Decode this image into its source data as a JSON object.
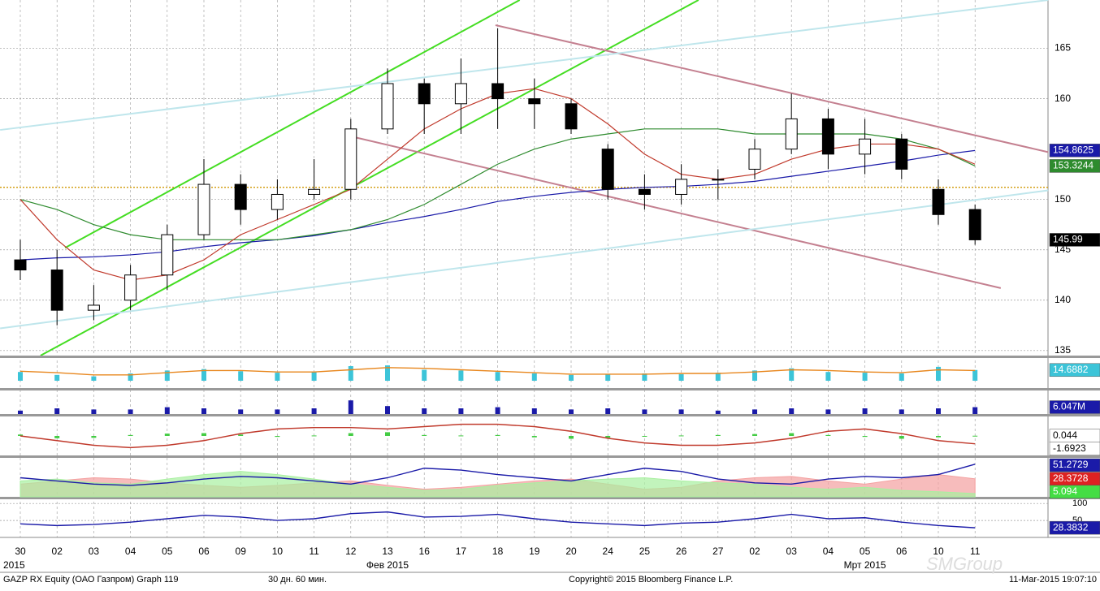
{
  "chart_data": {
    "type": "candlestick",
    "categories": [
      "30",
      "02",
      "03",
      "04",
      "05",
      "06",
      "09",
      "10",
      "11",
      "12",
      "13",
      "16",
      "17",
      "18",
      "19",
      "20",
      "24",
      "25",
      "26",
      "27",
      "02",
      "03",
      "04",
      "05",
      "06",
      "10",
      "11"
    ],
    "period_labels": [
      "2015",
      "Фев 2015",
      "Мрт 2015"
    ],
    "open": [
      144,
      143,
      139,
      140,
      142.5,
      146.5,
      151.5,
      149,
      150.5,
      151,
      157,
      161.5,
      159.5,
      161.5,
      160,
      159.5,
      155,
      151,
      150.5,
      152,
      153,
      155,
      158,
      154.5,
      156,
      151,
      149
    ],
    "high": [
      146,
      145,
      141.5,
      143.5,
      147.5,
      154,
      152.5,
      152,
      154,
      158,
      163,
      162,
      164,
      167,
      162,
      160,
      155.5,
      152.5,
      153.5,
      153,
      156,
      160.5,
      159,
      158,
      156.5,
      152,
      149.5
    ],
    "low": [
      142,
      137.5,
      138,
      139,
      141,
      146,
      147.5,
      148,
      150,
      150,
      156.5,
      156.5,
      156.5,
      157,
      157,
      156.5,
      150,
      149,
      149.5,
      150,
      152,
      154.5,
      153,
      152.5,
      152,
      147.5,
      145.5
    ],
    "close": [
      143,
      139,
      139.5,
      142.5,
      146.5,
      151.5,
      149,
      150.5,
      151,
      157,
      161.5,
      159.5,
      161.5,
      160,
      159.5,
      157,
      151,
      150.5,
      152,
      152,
      155,
      158,
      154.5,
      156,
      153,
      148.5,
      145.99
    ],
    "up_color": "#ffffff",
    "down_color": "#000000",
    "ylim": [
      134.5,
      169.8
    ],
    "yticks": [
      135,
      140,
      145,
      150,
      160,
      165
    ],
    "hline": {
      "value": 151.2,
      "color": "#d4a017"
    },
    "series": [
      {
        "color": "#1a1aa8",
        "label_bg": "#1a1aa8",
        "values": [
          144,
          144.2,
          144.3,
          144.5,
          144.8,
          145.3,
          145.7,
          146,
          146.4,
          147,
          147.7,
          148.3,
          149,
          149.8,
          150.3,
          150.7,
          151,
          151.2,
          151.3,
          151.5,
          151.8,
          152.3,
          152.8,
          153.3,
          153.8,
          154.4,
          154.8625
        ]
      },
      {
        "color": "#2e8b2e",
        "label_bg": "#2e8b2e",
        "values": [
          150,
          149,
          147.5,
          146.5,
          146,
          146,
          146,
          146,
          146.5,
          147,
          148,
          149.5,
          151.5,
          153.5,
          155,
          156,
          156.5,
          157,
          157,
          157,
          156.5,
          156.5,
          156.5,
          156.5,
          156,
          155,
          153.3244
        ]
      },
      {
        "color": "#c0392b",
        "values": [
          150,
          146,
          143,
          142,
          142.5,
          144,
          146.5,
          148,
          149.5,
          151,
          154,
          157,
          159,
          160.5,
          161,
          160,
          157.5,
          154.5,
          152.5,
          152,
          152.5,
          154,
          155,
          155.5,
          155.5,
          155,
          153.5
        ]
      }
    ],
    "trendlines": [
      {
        "color": "#44dd22",
        "from": [
          1.22,
          145.2
        ],
        "to": [
          13.6,
          169.8
        ]
      },
      {
        "color": "#44dd22",
        "from": [
          0.55,
          134.5
        ],
        "to": [
          18.47,
          169.8
        ]
      },
      {
        "color": "#c48090",
        "from": [
          12.94,
          167.3
        ],
        "to": [
          27.99,
          154.7
        ]
      },
      {
        "color": "#c48090",
        "from": [
          8.96,
          156.3
        ],
        "to": [
          26.7,
          141.2
        ]
      },
      {
        "color": "#bfe6ec",
        "from": [
          -0.55,
          156.9
        ],
        "to": [
          27.99,
          169.8
        ]
      },
      {
        "color": "#bfe6ec",
        "from": [
          -0.55,
          137.2
        ],
        "to": [
          27.99,
          150.9
        ]
      }
    ],
    "panels": [
      {
        "ylim": [
          -10,
          30
        ],
        "series": [
          {
            "type": "bar",
            "color": "#3cc4d8",
            "label_bg": "#3cc4d8",
            "values": [
              12,
              8,
              6,
              10,
              14,
              16,
              13,
              11,
              12,
              20,
              21,
              15,
              14,
              12,
              10,
              8,
              9,
              10,
              9,
              11,
              14,
              17,
              12,
              11,
              10,
              19,
              14.6882
            ]
          },
          {
            "type": "line",
            "color": "#e8871e",
            "values": [
              13,
              11,
              8,
              8,
              11,
              14,
              14,
              12,
              12,
              15,
              18,
              17,
              15,
              13,
              11,
              9,
              9,
              9,
              10,
              10,
              12,
              15,
              14,
              12,
              11,
              15,
              14
            ]
          }
        ]
      },
      {
        "ylim": [
          0,
          20000000
        ],
        "series": [
          {
            "type": "bar",
            "color": "#1a1aa8",
            "label_bg": "#1a1aa8",
            "values": [
              3000000,
              5000000,
              4000000,
              4000000,
              6000000,
              5000000,
              4000000,
              4000000,
              5000000,
              12000000,
              7000000,
              5000000,
              5000000,
              6000000,
              5000000,
              4000000,
              5000000,
              4000000,
              4000000,
              3000000,
              4000000,
              5000000,
              4000000,
              5000000,
              4000000,
              5000000,
              6047000
            ],
            "value_labels": [
              null,
              null,
              null,
              null,
              null,
              null,
              null,
              null,
              null,
              null,
              null,
              null,
              null,
              null,
              null,
              null,
              null,
              null,
              null,
              null,
              null,
              null,
              null,
              null,
              null,
              null,
              "6.047M"
            ]
          }
        ]
      },
      {
        "ylim": [
          -4,
          4
        ],
        "series": [
          {
            "type": "bar",
            "color": "#44cc44",
            "label_bg": "#ffffff",
            "values": [
              0.3,
              -0.5,
              -0.4,
              0.2,
              0.5,
              0.6,
              0.3,
              -0.2,
              0.1,
              0.6,
              0.8,
              0.2,
              0.1,
              0.2,
              -0.3,
              -0.6,
              -0.4,
              -0.1,
              0.1,
              0.2,
              0.4,
              0.6,
              0.2,
              -0.2,
              -0.6,
              -0.3,
              0.044
            ]
          },
          {
            "type": "line",
            "color": "#c0392b",
            "label_bg": "#ffffff",
            "values": [
              0,
              -1,
              -2,
              -2.5,
              -2,
              -1,
              0.5,
              1.5,
              1.8,
              1.8,
              1.5,
              2,
              2.5,
              2.5,
              2,
              1,
              -0.5,
              -1.5,
              -2,
              -2,
              -1.5,
              -0.5,
              1,
              1.5,
              0.5,
              -1,
              -1.6923
            ]
          }
        ]
      },
      {
        "ylim": [
          0,
          60
        ],
        "series": [
          {
            "type": "area",
            "color": "#f4a0a0",
            "label_bg": "#dd2222",
            "values": [
              20,
              25,
              30,
              28,
              22,
              18,
              15,
              18,
              22,
              25,
              18,
              12,
              15,
              20,
              25,
              28,
              20,
              12,
              15,
              25,
              30,
              32,
              25,
              20,
              28,
              35,
              28.3728
            ]
          },
          {
            "type": "area",
            "color": "#a8f0a0",
            "label_bg": "#44dd44",
            "values": [
              25,
              28,
              22,
              20,
              28,
              35,
              40,
              35,
              28,
              20,
              15,
              10,
              12,
              18,
              22,
              25,
              28,
              30,
              25,
              22,
              20,
              15,
              12,
              15,
              10,
              8,
              5.094
            ]
          },
          {
            "type": "line",
            "color": "#1a1aa8",
            "label_bg": "#1a1aa8",
            "values": [
              30,
              25,
              20,
              18,
              22,
              28,
              32,
              30,
              25,
              20,
              30,
              45,
              42,
              35,
              30,
              25,
              35,
              45,
              40,
              28,
              22,
              20,
              28,
              32,
              30,
              35,
              51.2729
            ]
          }
        ]
      },
      {
        "ylim": [
          0,
          110
        ],
        "yticks": [
          50,
          100
        ],
        "series": [
          {
            "type": "line",
            "color": "#1a1aa8",
            "label_bg": "#1a1aa8",
            "values": [
              40,
              35,
              38,
              45,
              55,
              65,
              60,
              50,
              55,
              70,
              75,
              60,
              62,
              68,
              55,
              45,
              40,
              35,
              42,
              45,
              55,
              68,
              55,
              58,
              45,
              35,
              28.3832
            ]
          }
        ]
      }
    ]
  },
  "footer": {
    "security": "GAZP RX Equity (ОАО Газпром) Graph 119",
    "period": "30 дн. 60 мин.",
    "copyright": "Copyright© 2015 Bloomberg Finance L.P.",
    "timestamp": "11-Mar-2015 19:07:10",
    "watermark": "SMGroup"
  }
}
